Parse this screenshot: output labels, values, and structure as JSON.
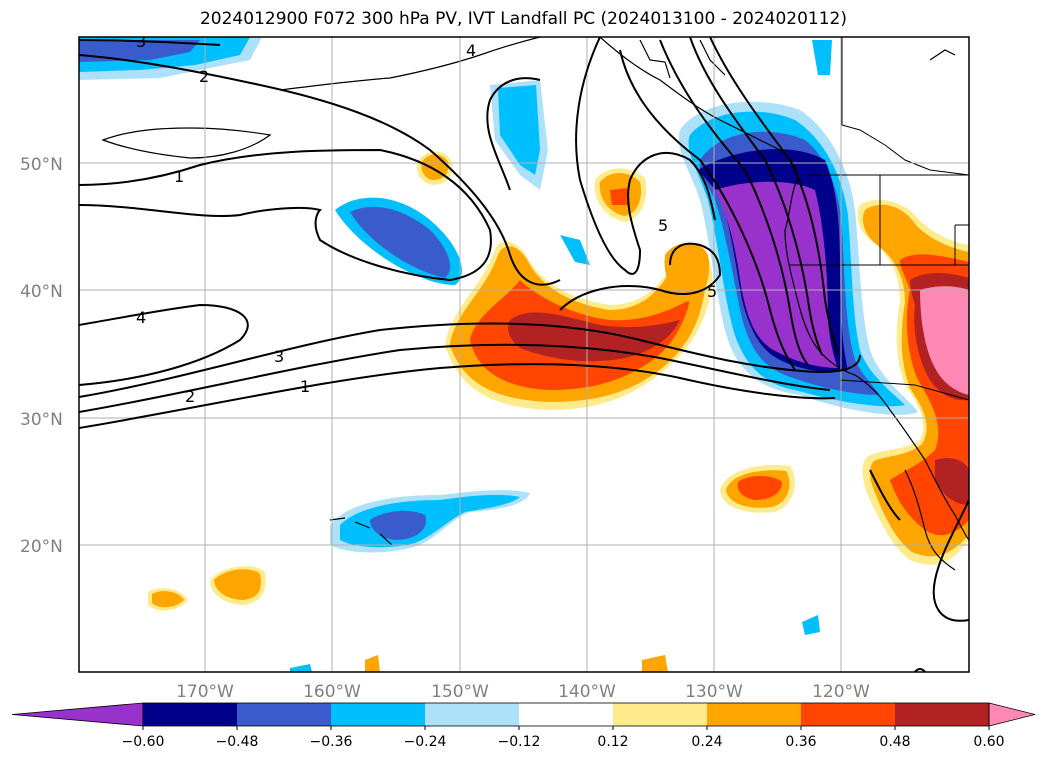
{
  "title": "2024012900 F072 300 hPa PV, IVT Landfall PC (2024013100 - 2024020112)",
  "latitude_labels": [
    "50°N",
    "40°N",
    "30°N",
    "20°N"
  ],
  "longitude_labels": [
    "170°W",
    "160°W",
    "150°W",
    "140°W",
    "130°W",
    "120°W"
  ],
  "colorbar": {
    "ticks": [
      "−0.60",
      "−0.48",
      "−0.36",
      "−0.24",
      "−0.12",
      "0.12",
      "0.24",
      "0.36",
      "0.48",
      "0.60"
    ],
    "colors": [
      "#9932CC",
      "#00008B",
      "#3A5BCC",
      "#00BFFF",
      "#ADE1FA",
      "#FFFFFF",
      "#FFEB8C",
      "#FFA500",
      "#FF4500",
      "#B22222",
      "#FF88B4"
    ]
  },
  "pv_contour_labels": [
    "3",
    "2",
    "1",
    "4",
    "3",
    "2",
    "1",
    "4",
    "5",
    "5"
  ]
}
